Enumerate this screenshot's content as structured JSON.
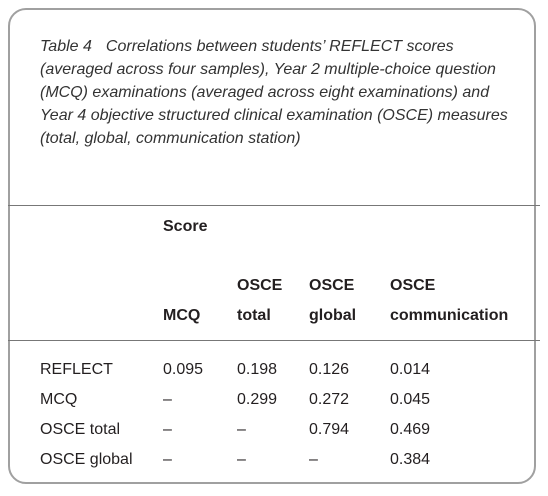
{
  "caption": {
    "label": "Table 4",
    "text": "Correlations between students’ REFLECT scores (averaged across four samples), Year 2 multiple-choice question (MCQ) examinations (averaged across eight examinations) and Year 4 objective structured clinical examination (OSCE) measures (total, global, communication station)"
  },
  "table": {
    "group_header": "Score",
    "columns": [
      "MCQ",
      "OSCE total",
      "OSCE global",
      "OSCE communication"
    ],
    "rows": [
      {
        "label": "REFLECT",
        "cells": [
          "0.095",
          "0.198",
          "0.126",
          "0.014"
        ]
      },
      {
        "label": "MCQ",
        "cells": [
          "–",
          "0.299",
          "0.272",
          "0.045"
        ]
      },
      {
        "label": "OSCE total",
        "cells": [
          "–",
          "–",
          "0.794",
          "0.469"
        ]
      },
      {
        "label": "OSCE global",
        "cells": [
          "–",
          "–",
          "–",
          "0.384"
        ]
      }
    ]
  }
}
